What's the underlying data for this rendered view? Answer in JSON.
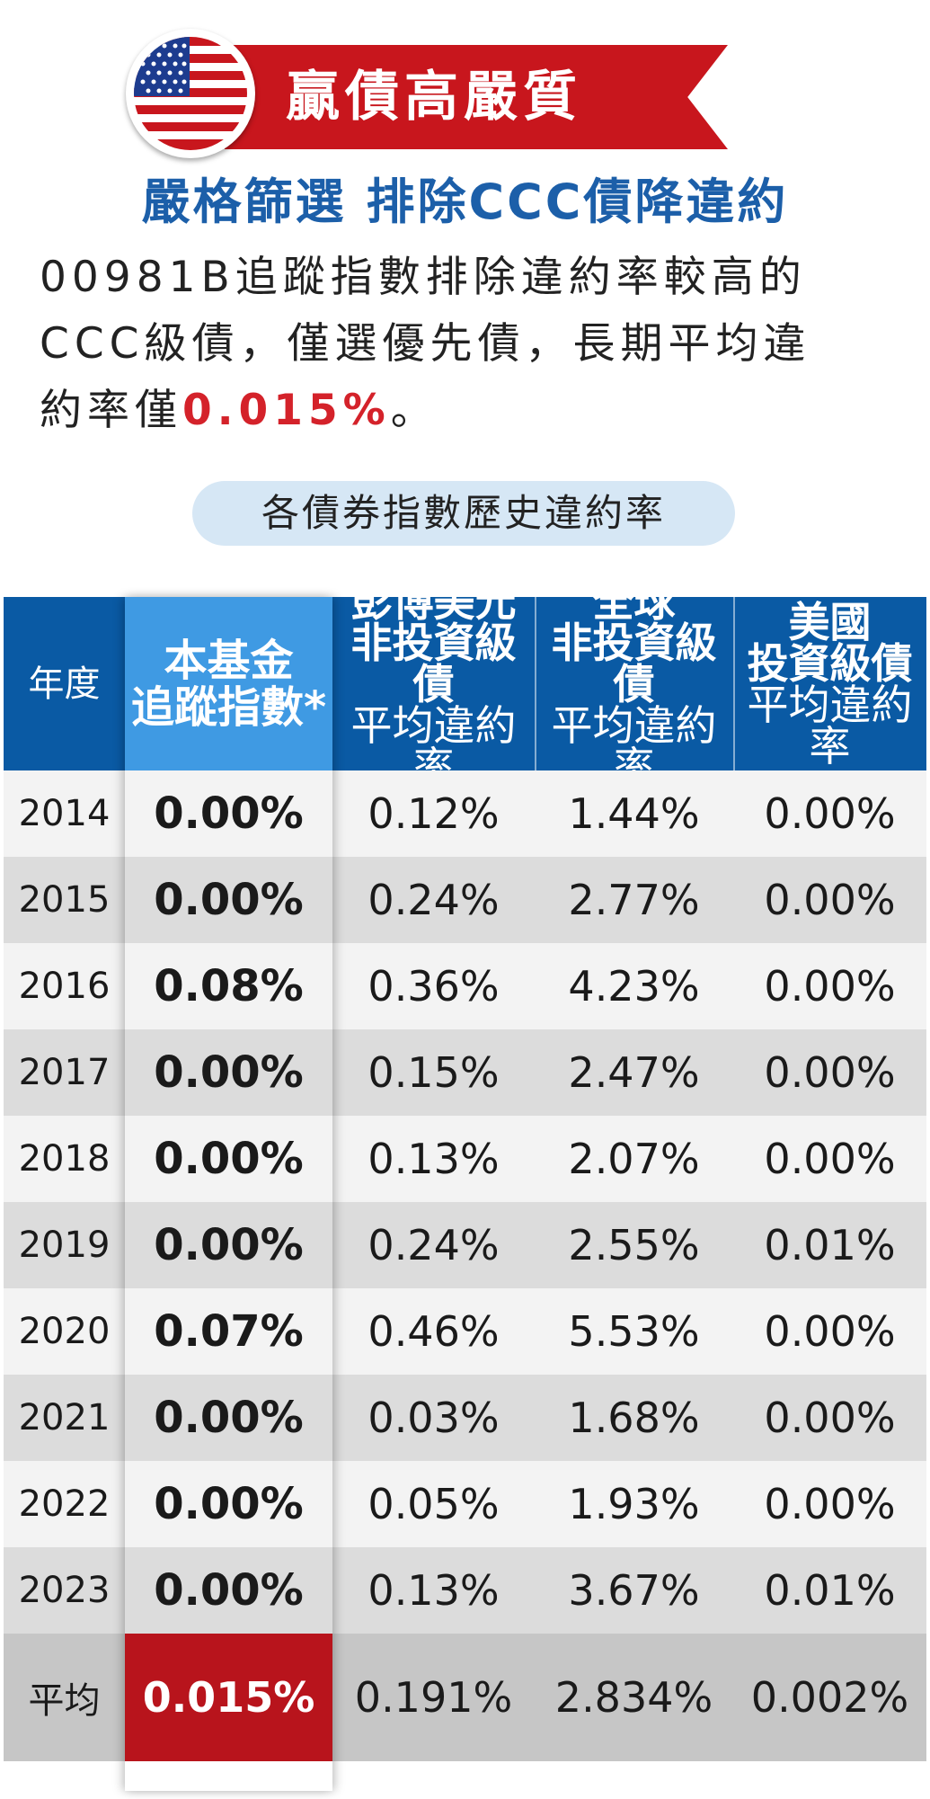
{
  "banner": {
    "title": "贏債高嚴質",
    "icon": "us-flag-icon"
  },
  "subtitle": "嚴格篩選 排除CCC債降違約",
  "description": {
    "line1": "00981B追蹤指數排除違約率較高的",
    "line2": "CCC級債，僅選優先債，長期平均違",
    "line3_prefix": "約率僅",
    "line3_highlight": "0.015%",
    "line3_suffix": "。"
  },
  "section_title": "各債券指數歷史違約率",
  "table": {
    "headers": {
      "year": "年度",
      "fund_line1": "本基金",
      "fund_line2": "追蹤指數*",
      "col2_line1": "彭博美元",
      "col2_line2": "非投資級債",
      "col2_line3": "平均違約率",
      "col3_line1": "全球",
      "col3_line2": "非投資級債",
      "col3_line3": "平均違約率",
      "col4_line1": "美國",
      "col4_line2": "投資級債",
      "col4_line3": "平均違約率"
    },
    "rows": [
      {
        "year": "2014",
        "fund": "0.00%",
        "bbg": "0.12%",
        "global": "1.44%",
        "us": "0.00%"
      },
      {
        "year": "2015",
        "fund": "0.00%",
        "bbg": "0.24%",
        "global": "2.77%",
        "us": "0.00%"
      },
      {
        "year": "2016",
        "fund": "0.08%",
        "bbg": "0.36%",
        "global": "4.23%",
        "us": "0.00%"
      },
      {
        "year": "2017",
        "fund": "0.00%",
        "bbg": "0.15%",
        "global": "2.47%",
        "us": "0.00%"
      },
      {
        "year": "2018",
        "fund": "0.00%",
        "bbg": "0.13%",
        "global": "2.07%",
        "us": "0.00%"
      },
      {
        "year": "2019",
        "fund": "0.00%",
        "bbg": "0.24%",
        "global": "2.55%",
        "us": "0.01%"
      },
      {
        "year": "2020",
        "fund": "0.07%",
        "bbg": "0.46%",
        "global": "5.53%",
        "us": "0.00%"
      },
      {
        "year": "2021",
        "fund": "0.00%",
        "bbg": "0.03%",
        "global": "1.68%",
        "us": "0.00%"
      },
      {
        "year": "2022",
        "fund": "0.00%",
        "bbg": "0.05%",
        "global": "1.93%",
        "us": "0.00%"
      },
      {
        "year": "2023",
        "fund": "0.00%",
        "bbg": "0.13%",
        "global": "3.67%",
        "us": "0.01%"
      }
    ],
    "average": {
      "year": "平均",
      "fund": "0.015%",
      "bbg": "0.191%",
      "global": "2.834%",
      "us": "0.002%"
    }
  },
  "colors": {
    "brand_blue": "#0a5aa4",
    "fund_blue": "#3f9ae3",
    "highlight_red": "#c8161d",
    "subtitle_blue": "#1c5fa9",
    "pill_bg": "#d6e7f5"
  }
}
